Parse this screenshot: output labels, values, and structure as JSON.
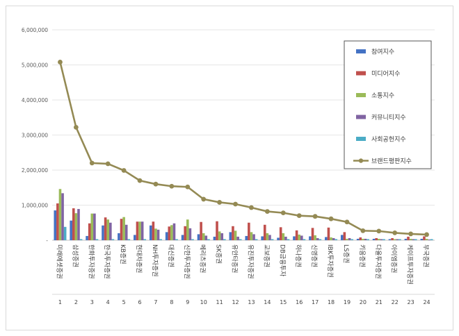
{
  "chart_data": {
    "type": "bar",
    "title": "",
    "xlabel": "",
    "ylabel": "",
    "ylim": [
      0,
      6000000
    ],
    "yticks": [
      "6,000,000",
      "5,000,000",
      "4,000,000",
      "3,000,000",
      "2,000,000",
      "1,000,000",
      "-"
    ],
    "grid": true,
    "legend_position": "top-right",
    "ranks": [
      "1",
      "2",
      "3",
      "4",
      "5",
      "6",
      "7",
      "8",
      "9",
      "10",
      "11",
      "12",
      "13",
      "14",
      "15",
      "16",
      "17",
      "18",
      "19",
      "20",
      "21",
      "22",
      "23",
      "24"
    ],
    "categories": [
      "미래에셋증권",
      "삼성증권",
      "한화투자증권",
      "한국투자증권",
      "KB증권",
      "현대차증권",
      "NH투자증권",
      "대신증권",
      "신한투자증권",
      "메리츠증권",
      "SK증권",
      "유안타증권",
      "유진투자증권",
      "교보증권",
      "DB금융투자",
      "하나증권",
      "신영증권",
      "IBK투자증권",
      "LS증권",
      "키움증권",
      "다올투자증권",
      "아이엠증권",
      "케이프투자증권",
      "부국증권"
    ],
    "series": [
      {
        "name": "참여지수",
        "type": "bar",
        "color": "#4472c4",
        "values": [
          850000,
          560000,
          120000,
          420000,
          200000,
          150000,
          420000,
          230000,
          150000,
          170000,
          100000,
          230000,
          120000,
          110000,
          70000,
          110000,
          110000,
          90000,
          150000,
          40000,
          40000,
          30000,
          40000,
          40000
        ]
      },
      {
        "name": "미디어지수",
        "type": "bar",
        "color": "#c0504d",
        "values": [
          1050000,
          910000,
          480000,
          650000,
          610000,
          530000,
          530000,
          390000,
          400000,
          520000,
          540000,
          400000,
          500000,
          440000,
          370000,
          280000,
          350000,
          360000,
          230000,
          80000,
          60000,
          60000,
          100000,
          110000
        ]
      },
      {
        "name": "소통지수",
        "type": "bar",
        "color": "#9bbb59",
        "values": [
          1460000,
          770000,
          760000,
          590000,
          660000,
          530000,
          330000,
          430000,
          590000,
          200000,
          250000,
          270000,
          230000,
          200000,
          200000,
          160000,
          140000,
          80000,
          40000,
          40000,
          40000,
          30000,
          40000,
          40000
        ]
      },
      {
        "name": "커뮤니티지수",
        "type": "bar",
        "color": "#8064a2",
        "values": [
          1340000,
          890000,
          760000,
          500000,
          440000,
          530000,
          300000,
          480000,
          340000,
          130000,
          200000,
          100000,
          170000,
          150000,
          100000,
          130000,
          60000,
          60000,
          60000,
          40000,
          30000,
          30000,
          30000,
          20000
        ]
      },
      {
        "name": "사회공헌지수",
        "type": "bar",
        "color": "#4bacc6",
        "values": [
          380000,
          30000,
          30000,
          30000,
          30000,
          30000,
          30000,
          30000,
          30000,
          30000,
          30000,
          30000,
          30000,
          30000,
          30000,
          30000,
          30000,
          30000,
          30000,
          30000,
          30000,
          30000,
          30000,
          30000
        ]
      },
      {
        "name": "브랜드평판지수",
        "type": "line",
        "color": "#948a54",
        "values": [
          5080000,
          3220000,
          2200000,
          2180000,
          1990000,
          1700000,
          1600000,
          1540000,
          1520000,
          1170000,
          1080000,
          1030000,
          930000,
          820000,
          780000,
          700000,
          680000,
          610000,
          520000,
          270000,
          260000,
          210000,
          180000,
          160000
        ]
      }
    ]
  }
}
